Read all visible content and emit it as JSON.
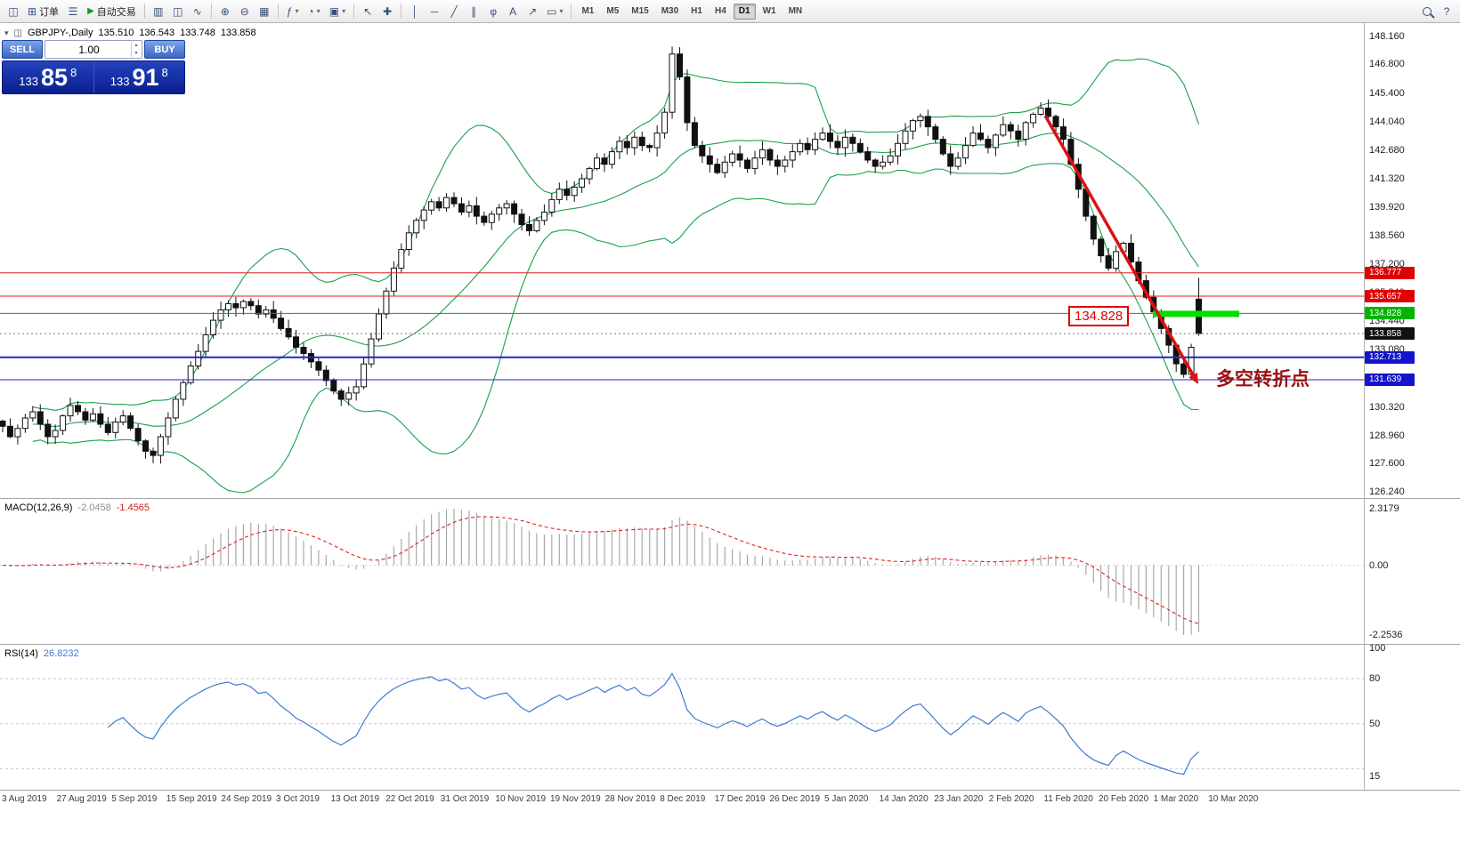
{
  "toolbar": {
    "groups": [
      {
        "items": [
          {
            "name": "chart-window-button",
            "icon": "chart"
          },
          {
            "name": "new-order-button",
            "icon": "order",
            "label": "订单"
          },
          {
            "name": "market-watch-button",
            "icon": "list"
          },
          {
            "name": "autotrading-button",
            "icon": "play",
            "label": "自动交易"
          }
        ]
      },
      {
        "items": [
          {
            "name": "bar-chart-button",
            "icon": "bars"
          },
          {
            "name": "candlestick-chart-button",
            "icon": "candles"
          },
          {
            "name": "line-chart-button",
            "icon": "line"
          }
        ]
      },
      {
        "items": [
          {
            "name": "zoom-in-button",
            "icon": "zoom-in"
          },
          {
            "name": "zoom-out-button",
            "icon": "zoom-out"
          },
          {
            "name": "tile-windows-button",
            "icon": "tile"
          }
        ]
      },
      {
        "items": [
          {
            "name": "indicators-button",
            "icon": "indicators",
            "dropdown": true
          },
          {
            "name": "periods-button",
            "icon": "clock",
            "dropdown": true
          },
          {
            "name": "templates-button",
            "icon": "template",
            "dropdown": true
          }
        ]
      },
      {
        "items": [
          {
            "name": "cursor-button",
            "icon": "cursor"
          },
          {
            "name": "crosshair-button",
            "icon": "crosshair"
          }
        ]
      },
      {
        "items": [
          {
            "name": "vertical-line-button",
            "icon": "vline"
          },
          {
            "name": "horizontal-line-button",
            "icon": "hline"
          },
          {
            "name": "trendline-button",
            "icon": "trend"
          },
          {
            "name": "channel-button",
            "icon": "channel"
          },
          {
            "name": "fibonacci-button",
            "icon": "fibo"
          },
          {
            "name": "text-button",
            "icon": "text"
          },
          {
            "name": "arrows-button",
            "icon": "arrow"
          },
          {
            "name": "shapes-button",
            "icon": "shapes",
            "dropdown": true
          }
        ]
      },
      {
        "type": "timeframes",
        "items": [
          {
            "label": "M1"
          },
          {
            "label": "M5"
          },
          {
            "label": "M15"
          },
          {
            "label": "M30"
          },
          {
            "label": "H1"
          },
          {
            "label": "H4"
          },
          {
            "label": "D1",
            "active": true
          },
          {
            "label": "W1"
          },
          {
            "label": "MN"
          }
        ]
      }
    ],
    "right_items": [
      {
        "name": "search-button",
        "icon": "search"
      },
      {
        "name": "help-button",
        "icon": "help"
      }
    ]
  },
  "chart": {
    "title": "GBPJPY-,Daily",
    "o": "135.510",
    "h": "136.543",
    "l": "133.748",
    "c": "133.858",
    "closes": [
      129.4,
      128.9,
      129.3,
      129.8,
      130.1,
      129.5,
      128.9,
      129.2,
      129.9,
      130.4,
      130.1,
      129.7,
      130.0,
      129.5,
      129.1,
      129.6,
      129.9,
      129.3,
      128.7,
      128.2,
      128.0,
      128.9,
      129.8,
      130.7,
      131.5,
      132.3,
      133.0,
      133.8,
      134.5,
      135.0,
      135.3,
      135.1,
      135.4,
      135.2,
      134.8,
      135.0,
      134.6,
      134.1,
      133.7,
      133.2,
      132.9,
      132.5,
      132.1,
      131.6,
      131.1,
      130.7,
      131.0,
      131.3,
      132.4,
      133.6,
      134.8,
      135.9,
      137.0,
      137.9,
      138.7,
      139.3,
      139.8,
      140.2,
      139.9,
      140.4,
      140.1,
      139.7,
      140.0,
      139.5,
      139.2,
      139.6,
      139.9,
      140.1,
      139.6,
      139.1,
      138.8,
      139.3,
      139.7,
      140.3,
      140.8,
      140.5,
      140.9,
      141.3,
      141.8,
      142.3,
      142.0,
      142.6,
      143.1,
      142.8,
      143.3,
      142.9,
      142.8,
      143.5,
      144.5,
      147.3,
      146.2,
      144.0,
      142.9,
      142.4,
      142.0,
      141.6,
      142.1,
      142.5,
      142.2,
      141.8,
      142.3,
      142.7,
      142.2,
      141.9,
      142.2,
      142.6,
      143.0,
      142.7,
      143.2,
      143.5,
      143.1,
      142.8,
      143.3,
      143.0,
      142.6,
      142.2,
      141.9,
      142.1,
      142.4,
      143.0,
      143.6,
      144.1,
      144.3,
      143.8,
      143.2,
      142.5,
      141.9,
      142.3,
      142.9,
      143.5,
      143.2,
      142.8,
      143.4,
      143.9,
      143.6,
      143.2,
      144.0,
      144.4,
      144.7,
      144.3,
      143.8,
      143.2,
      142.0,
      140.8,
      139.5,
      138.4,
      137.6,
      137.0,
      137.8,
      138.2,
      137.3,
      136.4,
      135.6,
      134.9,
      134.1,
      133.3,
      132.4,
      131.9,
      133.2,
      133.858
    ],
    "hlines": [
      {
        "price": 136.777,
        "color": "#e02020",
        "width": 1
      },
      {
        "price": 135.657,
        "color": "#e02020",
        "width": 1
      },
      {
        "price": 134.828,
        "color": "#00a800",
        "width": 1
      },
      {
        "price": 133.858,
        "color": "#777777",
        "width": 1,
        "dash": "2 3"
      },
      {
        "price": 132.713,
        "color": "#2424c8",
        "width": 2
      },
      {
        "price": 131.639,
        "color": "#2424c8",
        "width": 1
      }
    ],
    "band_color": "#1ba04a"
  },
  "axis": {
    "price_labels": [
      148.16,
      146.8,
      145.4,
      144.04,
      142.68,
      141.32,
      139.92,
      138.56,
      137.2,
      135.84,
      134.44,
      133.08,
      131.72,
      130.32,
      128.96,
      127.6,
      126.24
    ],
    "badges": [
      {
        "value": "136.777",
        "color": "#e00000"
      },
      {
        "value": "135.657",
        "color": "#e00000"
      },
      {
        "value": "134.828",
        "color": "#00b400"
      },
      {
        "value": "133.858",
        "color": "#101010"
      },
      {
        "value": "132.713",
        "color": "#1414cc"
      },
      {
        "value": "131.639",
        "color": "#1414cc"
      }
    ]
  },
  "trade_panel": {
    "sell_label": "SELL",
    "buy_label": "BUY",
    "volume": "1.00",
    "sell_price": {
      "prefix": "133",
      "big": "85",
      "sup": "8"
    },
    "buy_price": {
      "prefix": "133",
      "big": "91",
      "sup": "8"
    }
  },
  "macd": {
    "label": "MACD(12,26,9)",
    "value1": "-2.0458",
    "value2": "-1.4565",
    "axis_max": "2.3179",
    "axis_zero": "0.00",
    "axis_min": "-2.2536",
    "histogram_color": "#a8a8a8",
    "signal_color": "#e02020"
  },
  "rsi": {
    "label": "RSI(14)",
    "value": "26.8232",
    "axis_labels": [
      100,
      80,
      50,
      15
    ],
    "levels": [
      80,
      50,
      20
    ],
    "line_color": "#3e7bd0"
  },
  "time_axis": [
    "3 Aug 2019",
    "27 Aug 2019",
    "5 Sep 2019",
    "15 Sep 2019",
    "24 Sep 2019",
    "3 Oct 2019",
    "13 Oct 2019",
    "22 Oct 2019",
    "31 Oct 2019",
    "10 Nov 2019",
    "19 Nov 2019",
    "28 Nov 2019",
    "8 Dec 2019",
    "17 Dec 2019",
    "26 Dec 2019",
    "5 Jan 2020",
    "14 Jan 2020",
    "23 Jan 2020",
    "2 Feb 2020",
    "11 Feb 2020",
    "20 Feb 2020",
    "1 Mar 2020",
    "10 Mar 2020"
  ],
  "annotation": {
    "text": "多空转折点",
    "price_label": "134.828",
    "arrow_color": "#dd1111",
    "text_color": "#9b1010",
    "support_bar_color": "#00dd00",
    "flag_color": "#e00000"
  }
}
